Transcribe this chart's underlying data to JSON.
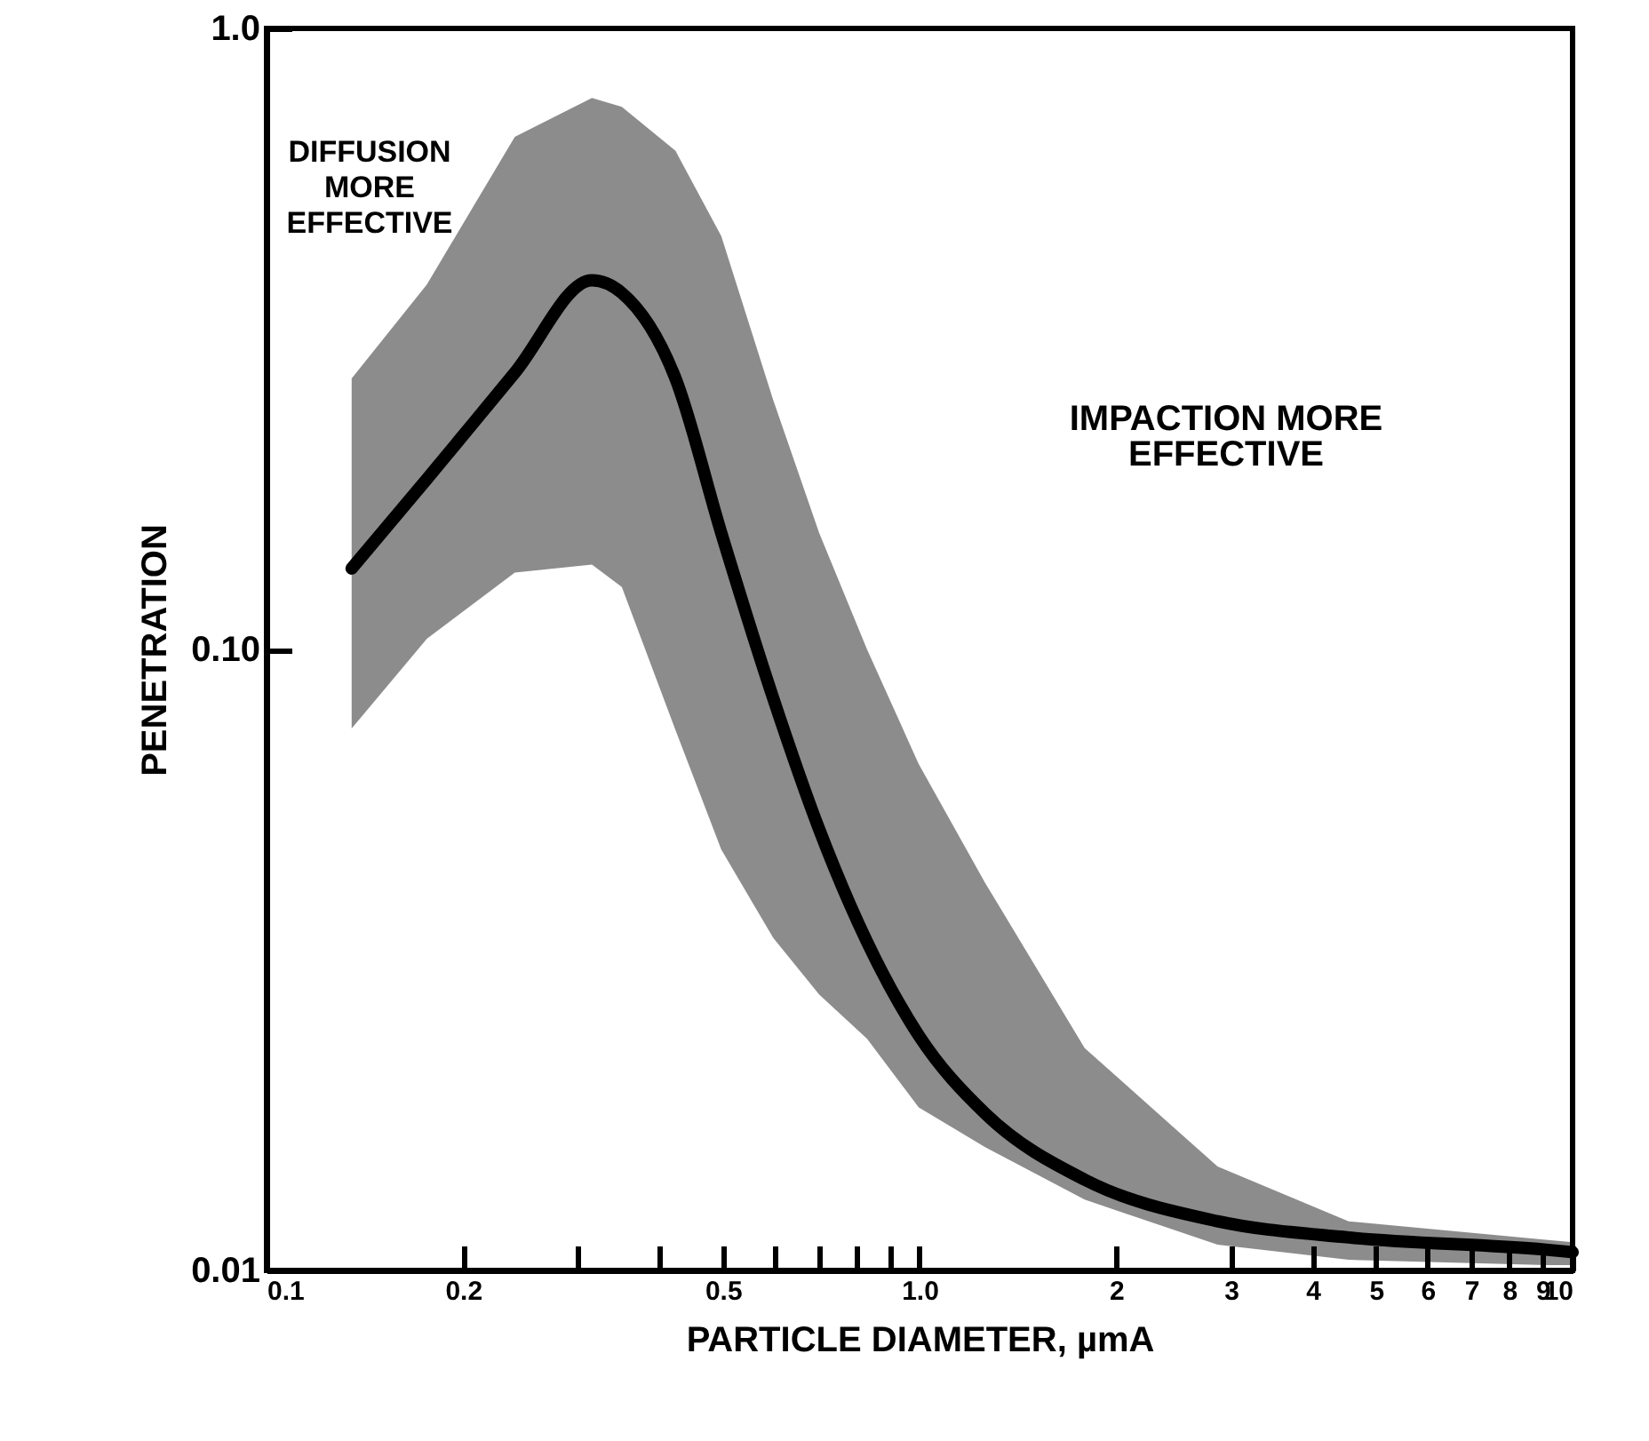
{
  "chart_data": {
    "type": "line",
    "xlabel": "PARTICLE DIAMETER, µmA",
    "ylabel": "PENETRATION",
    "annotations": [
      "DIFFUSION\nMORE\nEFFECTIVE",
      "IMPACTION MORE\nEFFECTIVE"
    ],
    "series": [
      {
        "color": "#000000",
        "x": [
          0.135,
          0.176,
          0.24,
          0.315,
          0.35,
          0.423,
          0.497,
          0.597,
          0.702,
          0.831,
          0.997,
          1.26,
          1.79,
          2.86,
          4.54,
          9.1,
          10
        ],
        "values": [
          0.135,
          0.188,
          0.279,
          0.393,
          0.375,
          0.273,
          0.154,
          0.0834,
          0.0513,
          0.0338,
          0.0239,
          0.0179,
          0.014,
          0.012,
          0.0113,
          0.0108,
          0.0107
        ],
        "upper": [
          0.273,
          0.387,
          0.669,
          0.773,
          0.748,
          0.635,
          0.463,
          0.252,
          0.154,
          0.1,
          0.0654,
          0.0421,
          0.0228,
          0.0147,
          0.012,
          0.0112,
          0.0111
        ],
        "lower": [
          0.0746,
          0.104,
          0.133,
          0.137,
          0.126,
          0.0741,
          0.0476,
          0.0343,
          0.0278,
          0.0236,
          0.0183,
          0.0158,
          0.013,
          0.011,
          0.0104,
          0.0102,
          0.0102
        ]
      }
    ],
    "xlim": [
      0.1,
      10
    ],
    "ylim": [
      0.01,
      1
    ],
    "xticks": [
      0.1,
      0.2,
      {
        "value": 0.3,
        "label": null
      },
      {
        "value": 0.4,
        "label": null
      },
      0.5,
      {
        "value": 0.6,
        "label": null
      },
      {
        "value": 0.7,
        "label": null
      },
      {
        "value": 0.8,
        "label": null
      },
      {
        "value": 0.9,
        "label": null
      },
      {
        "value": 1,
        "label": "1.0"
      },
      2,
      3,
      4,
      5,
      6,
      7,
      8,
      9,
      10
    ],
    "yticks": [
      0.01,
      {
        "value": 0.1,
        "label": "0.10"
      },
      {
        "value": 1,
        "label": "1.0"
      }
    ],
    "log": "xy",
    "grid": false,
    "marker": "none",
    "line_style": "solid"
  }
}
